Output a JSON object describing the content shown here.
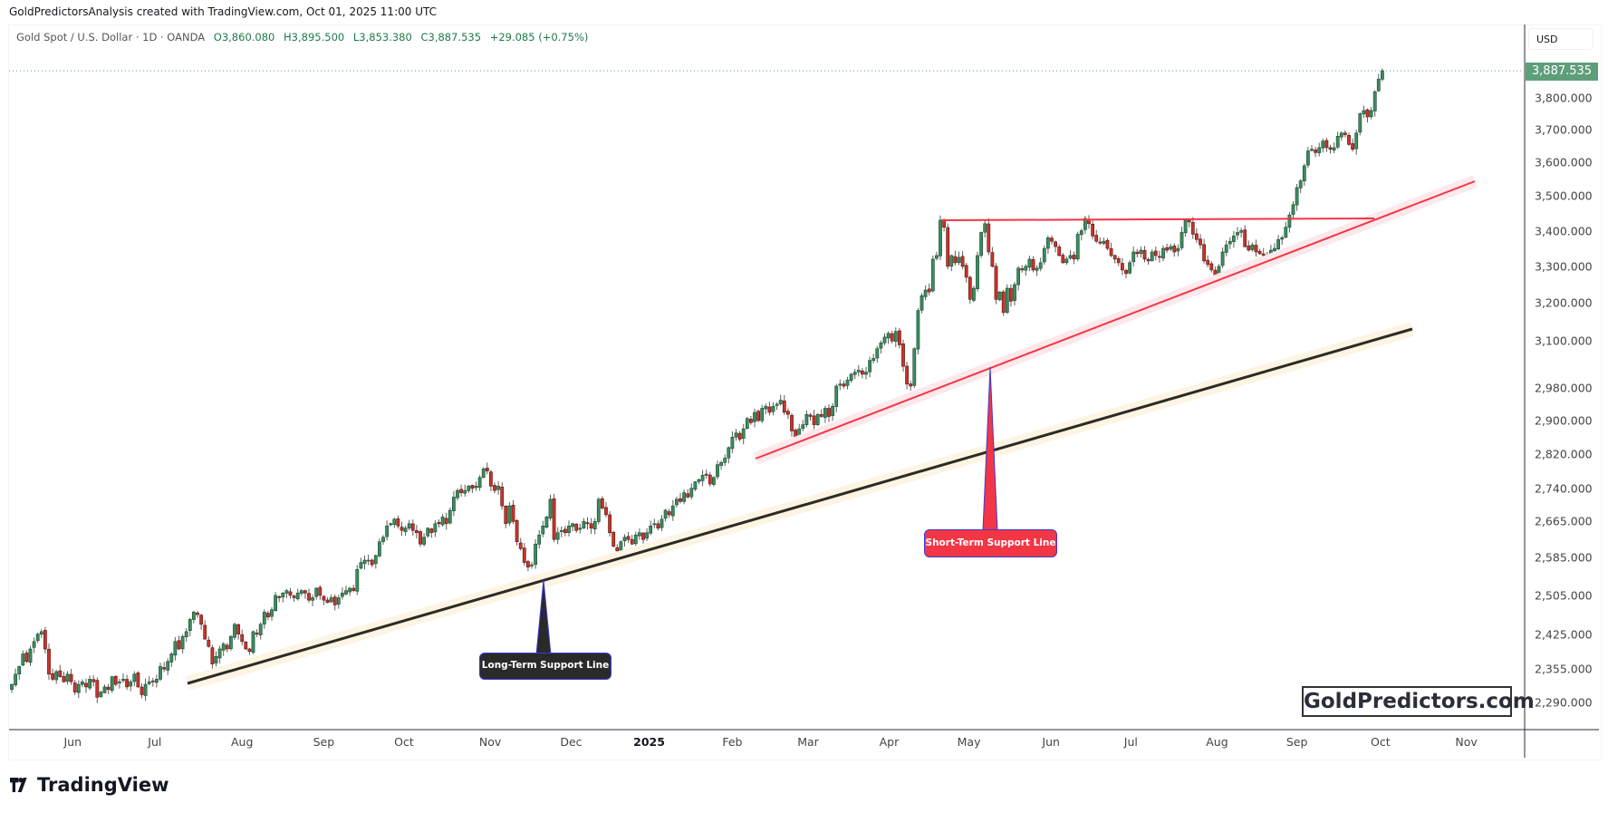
{
  "header": {
    "credit": "GoldPredictorsAnalysis created with TradingView.com, Oct 01, 2025 11:00 UTC"
  },
  "legend": {
    "symbol": "Gold Spot / U.S. Dollar · 1D · OANDA",
    "open": "O3,860.080",
    "high": "H3,895.500",
    "low": "L3,853.380",
    "close": "C3,887.535",
    "change": "+29.085 (+0.75%)"
  },
  "price_axis": {
    "currency": "USD",
    "last_price": "3,887.535"
  },
  "watermark": "GoldPredictors.com",
  "footer": {
    "logo_text": "TradingView",
    "logo_icon": "tradingview-logo-icon"
  },
  "annotations": {
    "long_term": "Long-Term Support Line",
    "short_term": "Short-Term Support Line"
  },
  "colors": {
    "up": "#3b8c5e",
    "down": "#c8342b",
    "short_term_line": "#f23645",
    "long_term_line": "#2d2a24",
    "last_price": "#5f9e7b"
  },
  "chart_data": {
    "type": "candlestick",
    "title": "Gold Spot / U.S. Dollar",
    "timeframe": "1D",
    "y_scale": "log",
    "ylim": [
      2250,
      3950
    ],
    "y_ticks": [
      "3,800.000",
      "3,700.000",
      "3,600.000",
      "3,500.000",
      "3,400.000",
      "3,300.000",
      "3,200.000",
      "3,100.000",
      "2,980.000",
      "2,900.000",
      "2,820.000",
      "2,740.000",
      "2,665.000",
      "2,585.000",
      "2,505.000",
      "2,425.000",
      "2,355.000",
      "2,290.000"
    ],
    "x_ticks": [
      "Jun",
      "Jul",
      "Aug",
      "Sep",
      "Oct",
      "Nov",
      "Dec",
      "2025",
      "Feb",
      "Mar",
      "Apr",
      "May",
      "Jun",
      "Jul",
      "Aug",
      "Sep",
      "Oct",
      "Nov"
    ],
    "last": {
      "open": 3860.08,
      "high": 3895.5,
      "low": 3853.38,
      "close": 3887.535
    },
    "closes": [
      2325,
      2345,
      2360,
      2385,
      2370,
      2395,
      2410,
      2425,
      2430,
      2395,
      2345,
      2335,
      2350,
      2340,
      2330,
      2345,
      2330,
      2310,
      2325,
      2330,
      2320,
      2335,
      2330,
      2300,
      2310,
      2320,
      2315,
      2340,
      2325,
      2330,
      2335,
      2320,
      2330,
      2345,
      2320,
      2305,
      2325,
      2330,
      2330,
      2335,
      2360,
      2355,
      2370,
      2385,
      2410,
      2395,
      2420,
      2430,
      2455,
      2470,
      2465,
      2445,
      2415,
      2400,
      2365,
      2380,
      2395,
      2405,
      2395,
      2420,
      2445,
      2425,
      2410,
      2395,
      2390,
      2430,
      2425,
      2445,
      2470,
      2460,
      2475,
      2505,
      2500,
      2510,
      2515,
      2505,
      2500,
      2510,
      2515,
      2510,
      2495,
      2500,
      2520,
      2505,
      2495,
      2490,
      2500,
      2485,
      2500,
      2510,
      2515,
      2520,
      2515,
      2560,
      2575,
      2580,
      2580,
      2570,
      2590,
      2620,
      2630,
      2655,
      2660,
      2670,
      2655,
      2645,
      2650,
      2660,
      2645,
      2640,
      2615,
      2630,
      2650,
      2640,
      2660,
      2660,
      2675,
      2660,
      2690,
      2720,
      2735,
      2730,
      2735,
      2745,
      2740,
      2745,
      2765,
      2785,
      2780,
      2745,
      2735,
      2745,
      2700,
      2660,
      2700,
      2665,
      2620,
      2605,
      2575,
      2565,
      2570,
      2615,
      2635,
      2655,
      2675,
      2715,
      2625,
      2640,
      2645,
      2640,
      2655,
      2660,
      2645,
      2650,
      2665,
      2660,
      2650,
      2665,
      2715,
      2695,
      2680,
      2640,
      2610,
      2600,
      2620,
      2630,
      2625,
      2615,
      2635,
      2640,
      2625,
      2640,
      2655,
      2660,
      2650,
      2670,
      2690,
      2680,
      2700,
      2715,
      2710,
      2730,
      2720,
      2740,
      2755,
      2760,
      2770,
      2770,
      2750,
      2765,
      2795,
      2800,
      2810,
      2835,
      2860,
      2870,
      2855,
      2880,
      2905,
      2895,
      2920,
      2900,
      2930,
      2935,
      2920,
      2935,
      2940,
      2950,
      2920,
      2915,
      2875,
      2860,
      2880,
      2890,
      2915,
      2910,
      2890,
      2915,
      2910,
      2930,
      2910,
      2935,
      2985,
      2990,
      2985,
      3000,
      3015,
      3020,
      3025,
      3015,
      3020,
      3050,
      3055,
      3080,
      3095,
      3110,
      3120,
      3100,
      3125,
      3090,
      3035,
      2990,
      2985,
      3080,
      3180,
      3220,
      3235,
      3230,
      3320,
      3330,
      3430,
      3410,
      3300,
      3330,
      3310,
      3325,
      3300,
      3270,
      3210,
      3240,
      3330,
      3395,
      3420,
      3340,
      3300,
      3210,
      3230,
      3175,
      3240,
      3205,
      3250,
      3295,
      3290,
      3300,
      3320,
      3290,
      3295,
      3310,
      3350,
      3380,
      3370,
      3355,
      3330,
      3310,
      3320,
      3330,
      3320,
      3390,
      3400,
      3435,
      3420,
      3385,
      3370,
      3365,
      3370,
      3350,
      3330,
      3320,
      3310,
      3290,
      3280,
      3310,
      3340,
      3335,
      3345,
      3320,
      3315,
      3340,
      3330,
      3325,
      3350,
      3345,
      3355,
      3340,
      3350,
      3395,
      3430,
      3425,
      3390,
      3375,
      3360,
      3315,
      3305,
      3290,
      3275,
      3300,
      3340,
      3360,
      3370,
      3385,
      3395,
      3400,
      3355,
      3345,
      3360,
      3340,
      3335,
      3330,
      3315,
      3345,
      3350,
      3375,
      3380,
      3410,
      3445,
      3475,
      3525,
      3545,
      3590,
      3635,
      3640,
      3630,
      3645,
      3665,
      3645,
      3640,
      3645,
      3680,
      3690,
      3685,
      3655,
      3640,
      3690,
      3750,
      3760,
      3740,
      3760,
      3820,
      3860,
      3887.535
    ]
  }
}
